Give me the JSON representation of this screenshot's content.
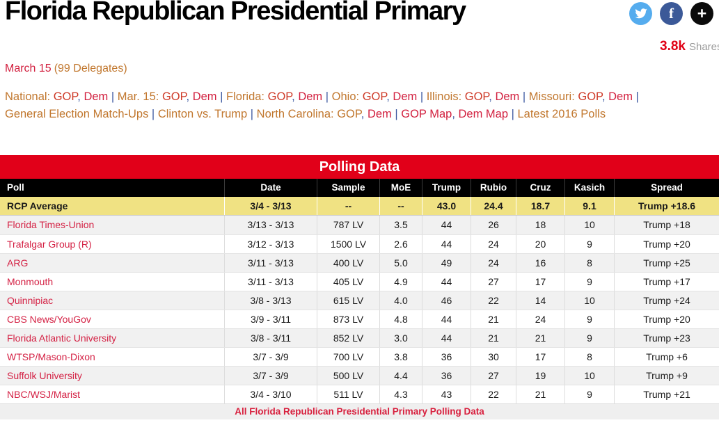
{
  "header": {
    "title": "Florida Republican Presidential Primary",
    "date": "March 15",
    "delegates": "(99 Delegates)",
    "shares_count": "3.8k",
    "shares_label": "Shares",
    "share_icons": [
      "twitter-icon",
      "facebook-icon",
      "plus-icon"
    ]
  },
  "nav": {
    "lines": [
      [
        {
          "t": "National:",
          "s": "label"
        },
        {
          "t": " ",
          "s": "sep"
        },
        {
          "t": "GOP",
          "s": "gop"
        },
        {
          "t": ", ",
          "s": "sep"
        },
        {
          "t": "Dem",
          "s": "dem"
        },
        {
          "t": " | ",
          "s": "sep"
        },
        {
          "t": "Mar. 15:",
          "s": "label"
        },
        {
          "t": " ",
          "s": "sep"
        },
        {
          "t": "GOP",
          "s": "gop"
        },
        {
          "t": ", ",
          "s": "sep"
        },
        {
          "t": "Dem",
          "s": "dem"
        },
        {
          "t": " | ",
          "s": "sep"
        },
        {
          "t": "Florida:",
          "s": "label"
        },
        {
          "t": " ",
          "s": "sep"
        },
        {
          "t": "GOP",
          "s": "gop"
        },
        {
          "t": ", ",
          "s": "sep"
        },
        {
          "t": "Dem",
          "s": "dem"
        },
        {
          "t": " | ",
          "s": "sep"
        },
        {
          "t": "Ohio:",
          "s": "label"
        },
        {
          "t": " ",
          "s": "sep"
        },
        {
          "t": "GOP",
          "s": "gop"
        },
        {
          "t": ", ",
          "s": "sep"
        },
        {
          "t": "Dem",
          "s": "dem"
        },
        {
          "t": " | ",
          "s": "sep"
        },
        {
          "t": "Illinois:",
          "s": "label"
        },
        {
          "t": " ",
          "s": "sep"
        },
        {
          "t": "GOP",
          "s": "gop"
        },
        {
          "t": ", ",
          "s": "sep"
        },
        {
          "t": "Dem",
          "s": "dem"
        },
        {
          "t": " | ",
          "s": "sep"
        },
        {
          "t": "Missouri:",
          "s": "label"
        },
        {
          "t": " ",
          "s": "sep"
        },
        {
          "t": "GOP",
          "s": "gop"
        },
        {
          "t": ", ",
          "s": "sep"
        },
        {
          "t": "Dem",
          "s": "dem"
        },
        {
          "t": " |",
          "s": "sep"
        }
      ],
      [
        {
          "t": "General Election Match-Ups",
          "s": "label"
        },
        {
          "t": " | ",
          "s": "sep"
        },
        {
          "t": "Clinton vs. Trump",
          "s": "label"
        },
        {
          "t": " | ",
          "s": "sep"
        },
        {
          "t": "North Carolina:",
          "s": "label"
        },
        {
          "t": " ",
          "s": "sep"
        },
        {
          "t": "GOP",
          "s": "label"
        },
        {
          "t": ", ",
          "s": "sep"
        },
        {
          "t": "Dem",
          "s": "dem"
        },
        {
          "t": " | ",
          "s": "sep"
        },
        {
          "t": "GOP Map",
          "s": "dem"
        },
        {
          "t": ", ",
          "s": "sep"
        },
        {
          "t": "Dem Map",
          "s": "dem"
        },
        {
          "t": " | ",
          "s": "sep"
        },
        {
          "t": "Latest 2016 Polls",
          "s": "label"
        }
      ]
    ]
  },
  "table": {
    "title": "Polling Data",
    "columns": [
      "Poll",
      "Date",
      "Sample",
      "MoE",
      "Trump",
      "Rubio",
      "Cruz",
      "Kasich",
      "Spread"
    ],
    "rcp_average": [
      "RCP Average",
      "3/4 - 3/13",
      "--",
      "--",
      "43.0",
      "24.4",
      "18.7",
      "9.1",
      "Trump +18.6"
    ],
    "rows": [
      [
        "Florida Times-Union",
        "3/13 - 3/13",
        "787 LV",
        "3.5",
        "44",
        "26",
        "18",
        "10",
        "Trump +18"
      ],
      [
        "Trafalgar Group (R)",
        "3/12 - 3/13",
        "1500 LV",
        "2.6",
        "44",
        "24",
        "20",
        "9",
        "Trump +20"
      ],
      [
        "ARG",
        "3/11 - 3/13",
        "400 LV",
        "5.0",
        "49",
        "24",
        "16",
        "8",
        "Trump +25"
      ],
      [
        "Monmouth",
        "3/11 - 3/13",
        "405 LV",
        "4.9",
        "44",
        "27",
        "17",
        "9",
        "Trump +17"
      ],
      [
        "Quinnipiac",
        "3/8 - 3/13",
        "615 LV",
        "4.0",
        "46",
        "22",
        "14",
        "10",
        "Trump +24"
      ],
      [
        "CBS News/YouGov",
        "3/9 - 3/11",
        "873 LV",
        "4.8",
        "44",
        "21",
        "24",
        "9",
        "Trump +20"
      ],
      [
        "Florida Atlantic University",
        "3/8 - 3/11",
        "852 LV",
        "3.0",
        "44",
        "21",
        "21",
        "9",
        "Trump +23"
      ],
      [
        "WTSP/Mason-Dixon",
        "3/7 - 3/9",
        "700 LV",
        "3.8",
        "36",
        "30",
        "17",
        "8",
        "Trump +6"
      ],
      [
        "Suffolk University",
        "3/7 - 3/9",
        "500 LV",
        "4.4",
        "36",
        "27",
        "19",
        "10",
        "Trump +9"
      ],
      [
        "NBC/WSJ/Marist",
        "3/4 - 3/10",
        "511 LV",
        "4.3",
        "43",
        "22",
        "21",
        "9",
        "Trump +21"
      ]
    ],
    "footer_link": "All Florida Republican Presidential Primary Polling Data"
  },
  "colors": {
    "bar_red": "#E10019",
    "rcp_row_yellow": "#F0E283",
    "link_orange": "#C1772E",
    "link_gop_red": "#CE3A28",
    "link_dem_red": "#D2203F",
    "separator_blue": "#3D59A1",
    "poll_name_red": "#D42144",
    "footer_red": "#D8203E",
    "shares_red": "#E00014",
    "shares_gray": "#9B9B9B",
    "twitter_blue": "#55ACEE",
    "facebook_blue": "#3B5998",
    "plus_black": "#0B0B0B"
  }
}
